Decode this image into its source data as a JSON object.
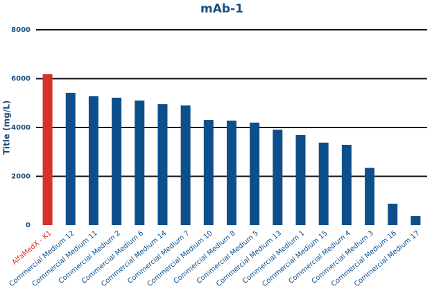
{
  "chart_data": {
    "type": "bar",
    "title": "mAb-1",
    "y_label": "Title (mg/L)",
    "categories": [
      "AlfaMedX - K1",
      "Commercial Medium 12",
      "Commercial Medium 11",
      "Commercial Medium 2",
      "Commercial Medium 6",
      "Commercial Medium 14",
      "Commercial Medium 7",
      "Commercial Medium 10",
      "Commercial Medium 8",
      "Commercial Medium 5",
      "Commercial Medium 13",
      "Commercial Medium 1",
      "Commercial Medium 15",
      "Commercial Medium 4",
      "Commercial Medium 3",
      "Commercial Medium 16",
      "Commercial Medium 17"
    ],
    "values": [
      6180,
      5420,
      5280,
      5220,
      5100,
      4960,
      4900,
      4310,
      4280,
      4200,
      3910,
      3690,
      3380,
      3290,
      2350,
      880,
      370
    ],
    "colors": [
      "#d7322b",
      "#0d4f8b",
      "#0d4f8b",
      "#0d4f8b",
      "#0d4f8b",
      "#0d4f8b",
      "#0d4f8b",
      "#0d4f8b",
      "#0d4f8b",
      "#0d4f8b",
      "#0d4f8b",
      "#0d4f8b",
      "#0d4f8b",
      "#0d4f8b",
      "#0d4f8b",
      "#0d4f8b",
      "#0d4f8b"
    ],
    "ylim": [
      0,
      8000
    ],
    "yticks": [
      0,
      2000,
      4000,
      6000,
      8000
    ],
    "grid": true
  }
}
